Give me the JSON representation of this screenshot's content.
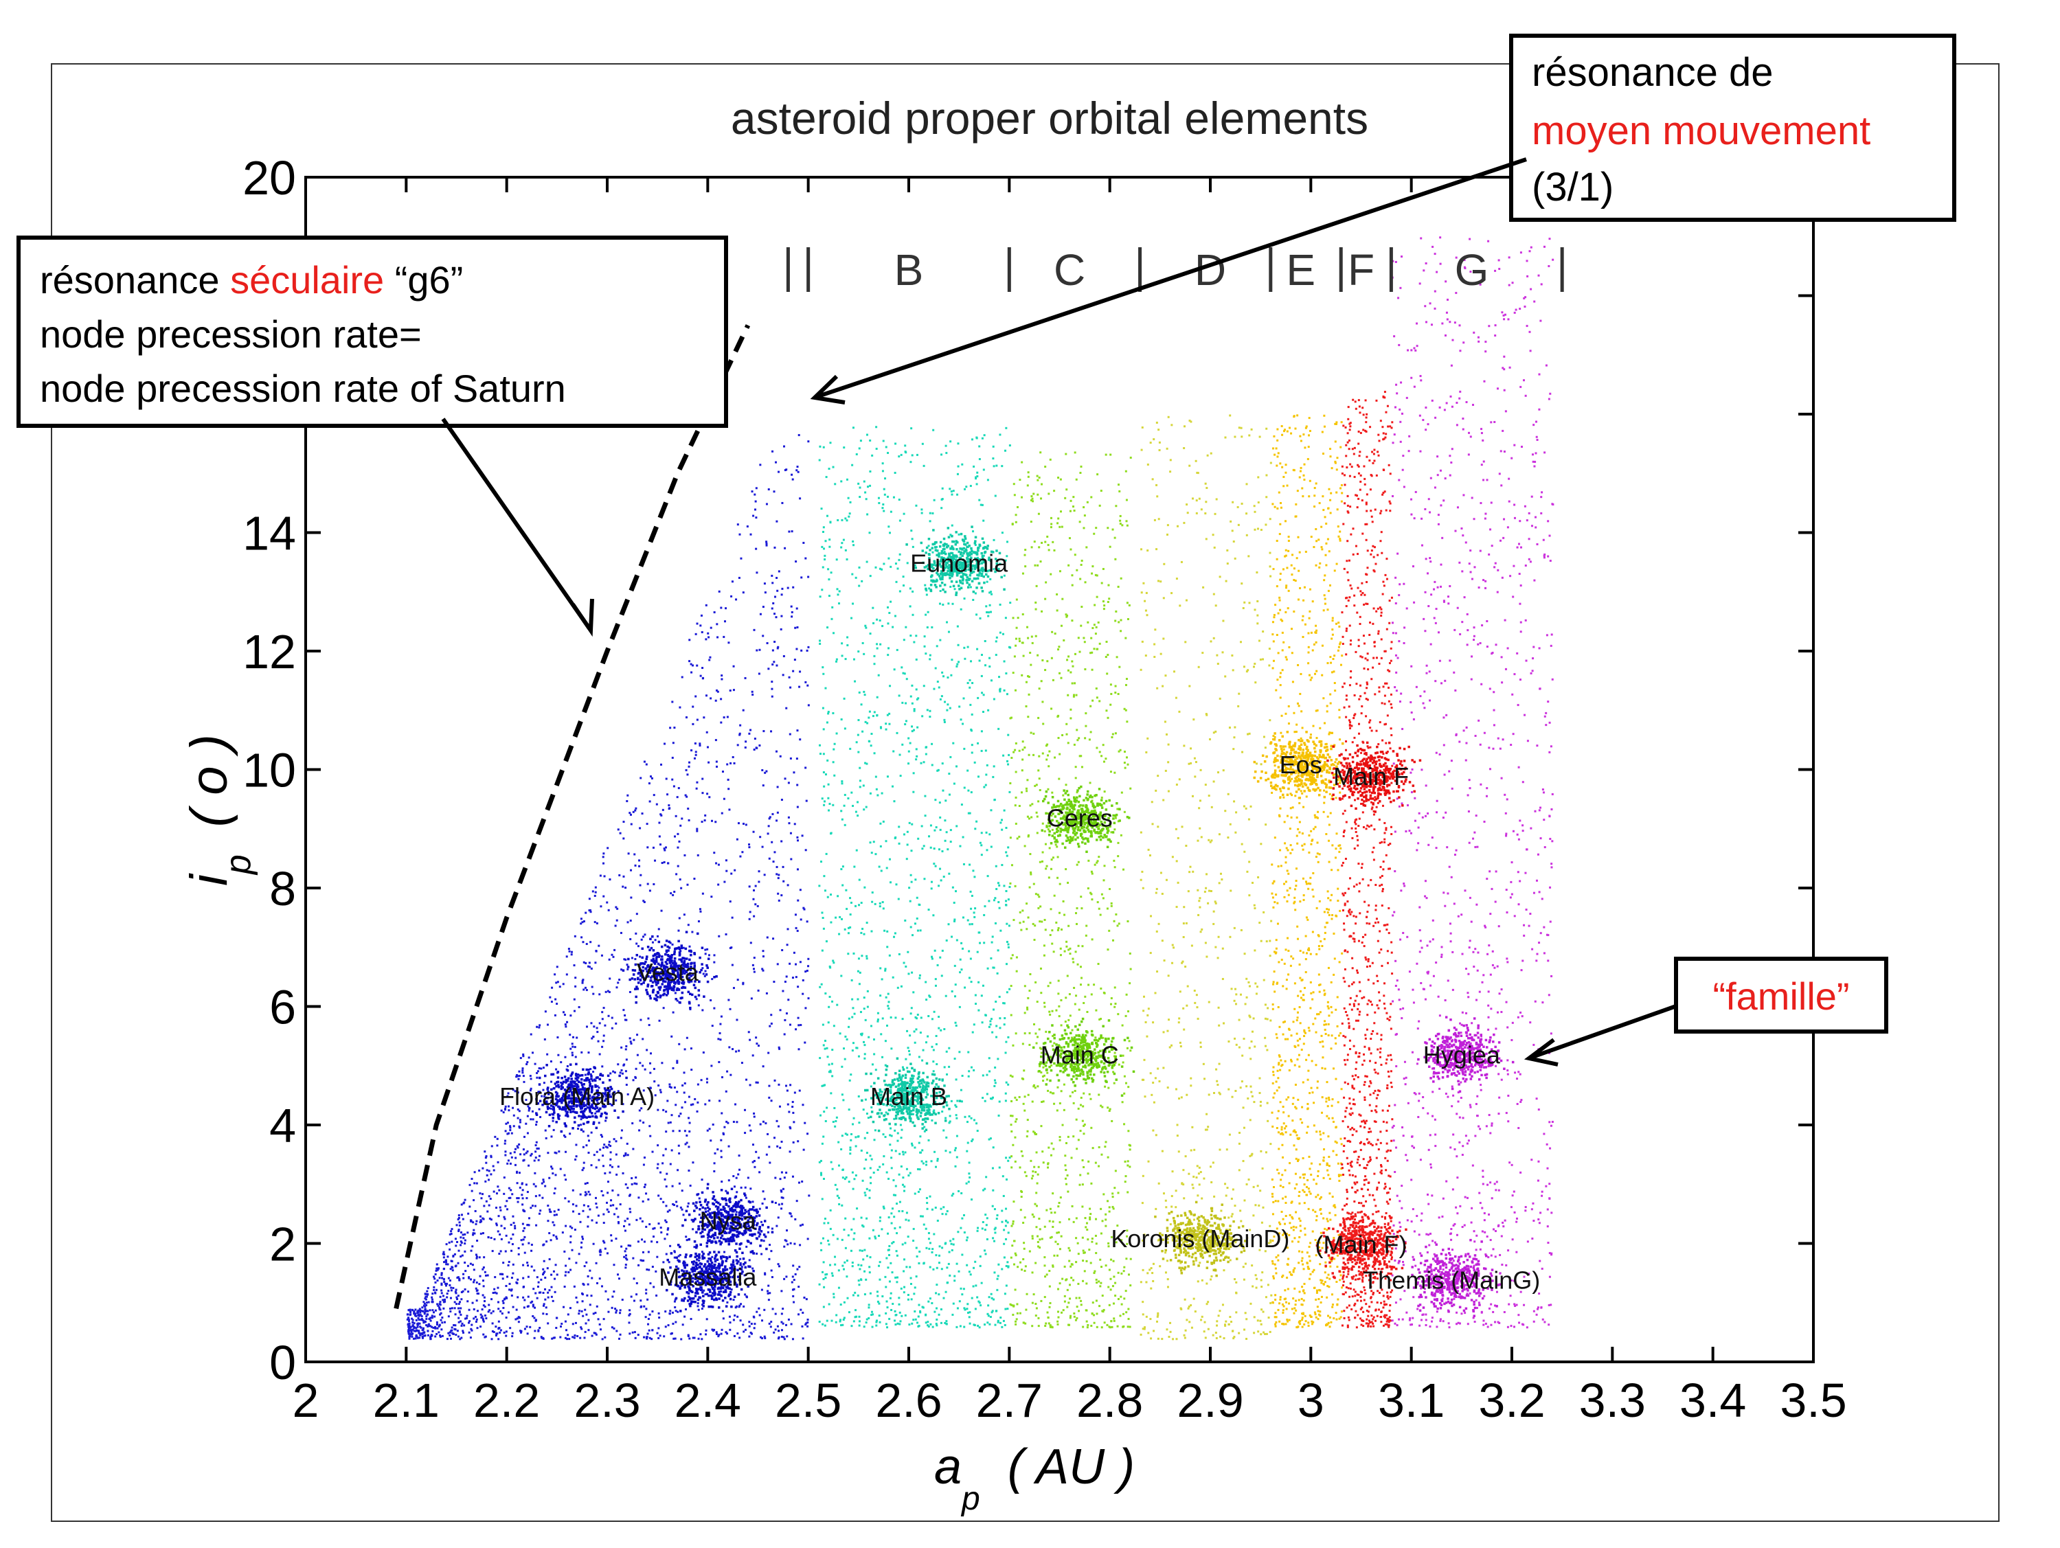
{
  "chart_data": {
    "type": "scatter",
    "title": "asteroid proper orbital elements",
    "xlabel_main": "a",
    "xlabel_sub": "p",
    "xlabel_unit": "( AU )",
    "ylabel_main": "i",
    "ylabel_sub": "p",
    "ylabel_unit": "( o )",
    "xlim": [
      2,
      3.5
    ],
    "ylim": [
      0,
      20
    ],
    "x_ticks": [
      "2",
      "2.1",
      "2.2",
      "2.3",
      "2.4",
      "2.5",
      "2.6",
      "2.7",
      "2.8",
      "2.9",
      "3",
      "3.1",
      "3.2",
      "3.3",
      "3.4",
      "3.5"
    ],
    "y_ticks": [
      "0",
      "2",
      "4",
      "6",
      "8",
      "10",
      "12",
      "14",
      "",
      "",
      "20"
    ],
    "grid": false,
    "zones": [
      {
        "label": "B",
        "x": 2.6
      },
      {
        "label": "C",
        "x": 2.76
      },
      {
        "label": "D",
        "x": 2.9
      },
      {
        "label": "E",
        "x": 2.99
      },
      {
        "label": "F",
        "x": 3.05
      },
      {
        "label": "G",
        "x": 3.16
      }
    ],
    "zone_dividers": [
      2.5,
      2.7,
      2.83,
      2.96,
      3.03,
      3.08,
      3.25
    ],
    "regions": [
      {
        "name": "A",
        "color": "#1a1ad6",
        "x": [
          2.1,
          2.5
        ],
        "y": [
          0.4,
          16
        ]
      },
      {
        "name": "B",
        "color": "#19d9b8",
        "x": [
          2.51,
          2.7
        ],
        "y": [
          0.6,
          15.8
        ]
      },
      {
        "name": "C",
        "color": "#8fdc1e",
        "x": [
          2.7,
          2.82
        ],
        "y": [
          0.6,
          15.5
        ]
      },
      {
        "name": "D",
        "color": "#d6d63a",
        "x": [
          2.83,
          2.96
        ],
        "y": [
          0.4,
          16
        ]
      },
      {
        "name": "E",
        "color": "#f5c400",
        "x": [
          2.96,
          3.03
        ],
        "y": [
          0.6,
          16
        ]
      },
      {
        "name": "F",
        "color": "#ef1b1b",
        "x": [
          3.03,
          3.08
        ],
        "y": [
          0.6,
          16.5
        ]
      },
      {
        "name": "G",
        "color": "#cc33dd",
        "x": [
          3.08,
          3.24
        ],
        "y": [
          0.6,
          19
        ]
      }
    ],
    "families": [
      {
        "label": "Eunomia",
        "x": 2.65,
        "y": 13.5,
        "color": "#10c9a6"
      },
      {
        "label": "Vesta",
        "x": 2.36,
        "y": 6.6,
        "color": "#0b0bc8"
      },
      {
        "label": "Flora (Main A)",
        "x": 2.27,
        "y": 4.5,
        "color": "#0b0bc8"
      },
      {
        "label": "Nysa",
        "x": 2.42,
        "y": 2.4,
        "color": "#0b0bc8"
      },
      {
        "label": "Massalia",
        "x": 2.4,
        "y": 1.45,
        "color": "#0b0bc8"
      },
      {
        "label": "Main B",
        "x": 2.6,
        "y": 4.5,
        "color": "#10c9a6"
      },
      {
        "label": "Ceres",
        "x": 2.77,
        "y": 9.2,
        "color": "#6fd10e"
      },
      {
        "label": "Main C",
        "x": 2.77,
        "y": 5.2,
        "color": "#6fd10e"
      },
      {
        "label": "Koronis (MainD)",
        "x": 2.89,
        "y": 2.1,
        "color": "#c2c21a"
      },
      {
        "label": "Eos",
        "x": 2.99,
        "y": 10.1,
        "color": "#f5c000"
      },
      {
        "label": "Main F",
        "x": 3.06,
        "y": 9.9,
        "color": "#e81010"
      },
      {
        "label": "(Main F)",
        "x": 3.05,
        "y": 2.0,
        "color": "#ef1b1b"
      },
      {
        "label": "Hygiea",
        "x": 3.15,
        "y": 5.2,
        "color": "#c020d8"
      },
      {
        "label": "Themis (MainG)",
        "x": 3.14,
        "y": 1.4,
        "color": "#c020d8"
      }
    ],
    "secular_resonance_curve": [
      [
        2.09,
        0.9
      ],
      [
        2.13,
        4
      ],
      [
        2.2,
        7.5
      ],
      [
        2.3,
        12
      ],
      [
        2.37,
        15
      ],
      [
        2.44,
        17.5
      ]
    ]
  },
  "annotations": {
    "mean_motion": {
      "line1": "résonance de",
      "line2": "moyen mouvement",
      "line3": "(3/1)"
    },
    "secular": {
      "prefix": "résonance ",
      "highlight": "séculaire",
      "suffix": " “g6”",
      "line2": "node precession rate=",
      "line3": "node precession rate of Saturn"
    },
    "famille": {
      "label": "“famille”"
    }
  },
  "colors": {
    "accent_red": "#e8201c",
    "axis": "#000000"
  }
}
